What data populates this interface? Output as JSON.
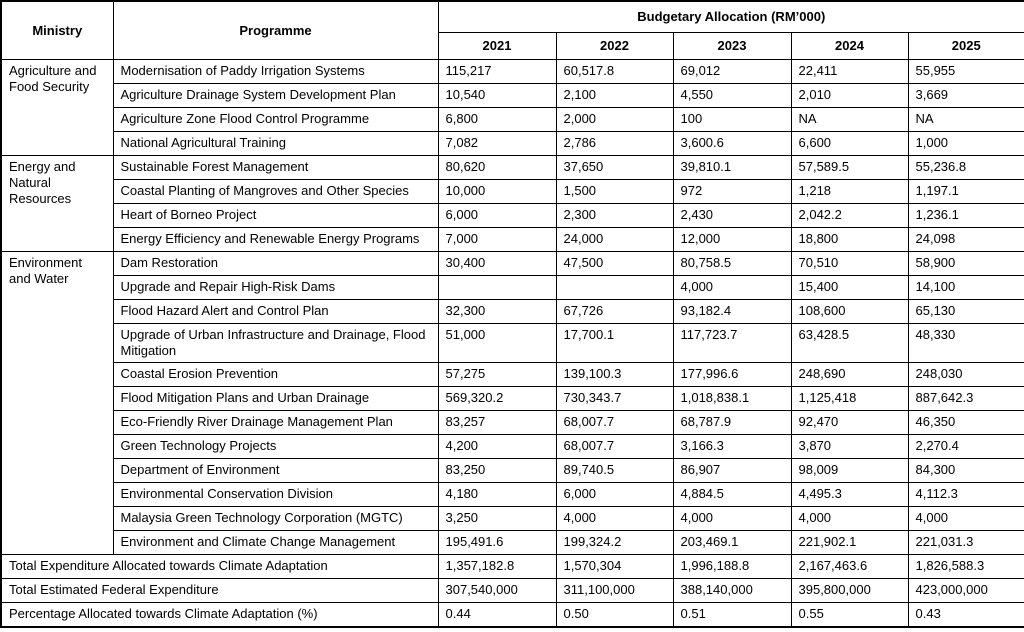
{
  "table": {
    "header": {
      "ministry": "Ministry",
      "programme": "Programme",
      "allocation": "Budgetary Allocation (RM’000)",
      "years": [
        "2021",
        "2022",
        "2023",
        "2024",
        "2025"
      ]
    },
    "groups": [
      {
        "ministry": "Agriculture and Food Security",
        "rows": [
          {
            "programme": "Modernisation of Paddy Irrigation Systems",
            "values": [
              "115,217",
              "60,517.8",
              "69,012",
              "22,411",
              "55,955"
            ]
          },
          {
            "programme": "Agriculture Drainage System Development Plan",
            "values": [
              "10,540",
              "2,100",
              "4,550",
              "2,010",
              "3,669"
            ]
          },
          {
            "programme": "Agriculture Zone Flood Control Programme",
            "values": [
              "6,800",
              "2,000",
              "100",
              "NA",
              "NA"
            ]
          },
          {
            "programme": "National Agricultural Training",
            "values": [
              "7,082",
              "2,786",
              "3,600.6",
              "6,600",
              "1,000"
            ]
          }
        ]
      },
      {
        "ministry": "Energy and Natural Resources",
        "rows": [
          {
            "programme": "Sustainable Forest Management",
            "values": [
              "80,620",
              "37,650",
              "39,810.1",
              "57,589.5",
              "55,236.8"
            ]
          },
          {
            "programme": "Coastal Planting of Mangroves and Other Species",
            "values": [
              "10,000",
              "1,500",
              "972",
              "1,218",
              "1,197.1"
            ]
          },
          {
            "programme": "Heart of Borneo Project",
            "values": [
              "6,000",
              "2,300",
              "2,430",
              "2,042.2",
              "1,236.1"
            ]
          },
          {
            "programme": "Energy Efficiency and Renewable Energy Programs",
            "values": [
              "7,000",
              "24,000",
              "12,000",
              "18,800",
              "24,098"
            ]
          }
        ]
      },
      {
        "ministry": "Environment and Water",
        "rows": [
          {
            "programme": "Dam Restoration",
            "values": [
              "30,400",
              "47,500",
              "80,758.5",
              "70,510",
              "58,900"
            ]
          },
          {
            "programme": "Upgrade and Repair High-Risk Dams",
            "values": [
              "",
              "",
              "4,000",
              "15,400",
              "14,100"
            ]
          },
          {
            "programme": "Flood Hazard Alert and Control Plan",
            "values": [
              "32,300",
              "67,726",
              "93,182.4",
              "108,600",
              "65,130"
            ]
          },
          {
            "programme": "Upgrade of Urban Infrastructure and Drainage, Flood Mitigation",
            "values": [
              "51,000",
              "17,700.1",
              "117,723.7",
              "63,428.5",
              "48,330"
            ]
          },
          {
            "programme": "Coastal Erosion Prevention",
            "values": [
              "57,275",
              "139,100.3",
              "177,996.6",
              "248,690",
              "248,030"
            ]
          },
          {
            "programme": "Flood Mitigation Plans and Urban Drainage",
            "values": [
              "569,320.2",
              "730,343.7",
              "1,018,838.1",
              "1,125,418",
              "887,642.3"
            ]
          },
          {
            "programme": "Eco-Friendly River Drainage Management Plan",
            "values": [
              "83,257",
              "68,007.7",
              "68,787.9",
              "92,470",
              "46,350"
            ]
          },
          {
            "programme": "Green Technology Projects",
            "values": [
              "4,200",
              "68,007.7",
              "3,166.3",
              "3,870",
              "2,270.4"
            ]
          },
          {
            "programme": "Department of Environment",
            "values": [
              "83,250",
              "89,740.5",
              "86,907",
              "98,009",
              "84,300"
            ]
          },
          {
            "programme": "Environmental Conservation Division",
            "values": [
              "4,180",
              "6,000",
              "4,884.5",
              "4,495.3",
              "4,112.3"
            ]
          },
          {
            "programme": "Malaysia Green Technology Corporation (MGTC)",
            "values": [
              "3,250",
              "4,000",
              "4,000",
              "4,000",
              "4,000"
            ]
          },
          {
            "programme": "Environment and Climate Change Management",
            "values": [
              "195,491.6",
              "199,324.2",
              "203,469.1",
              "221,902.1",
              "221,031.3"
            ]
          }
        ]
      }
    ],
    "summary": [
      {
        "label": "Total Expenditure Allocated towards Climate Adaptation",
        "values": [
          "1,357,182.8",
          "1,570,304",
          "1,996,188.8",
          "2,167,463.6",
          "1,826,588.3"
        ]
      },
      {
        "label": "Total Estimated Federal Expenditure",
        "values": [
          "307,540,000",
          "311,100,000",
          "388,140,000",
          "395,800,000",
          "423,000,000"
        ]
      },
      {
        "label": "Percentage Allocated towards Climate Adaptation (%)",
        "values": [
          "0.44",
          "0.50",
          "0.51",
          "0.55",
          "0.43"
        ]
      }
    ]
  }
}
